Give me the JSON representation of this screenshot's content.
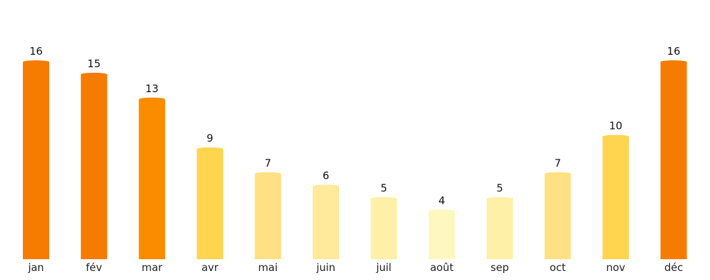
{
  "chart_data": {
    "type": "bar",
    "title": "",
    "xlabel": "",
    "ylabel": "",
    "categories": [
      "jan",
      "fév",
      "mar",
      "avr",
      "mai",
      "juin",
      "juil",
      "août",
      "sep",
      "oct",
      "nov",
      "déc"
    ],
    "values": [
      16,
      15,
      13,
      9,
      7,
      6,
      5,
      4,
      5,
      7,
      10,
      16
    ],
    "value_labels": [
      "16",
      "15",
      "13",
      "9",
      "7",
      "6",
      "5",
      "4",
      "5",
      "7",
      "10",
      "16"
    ],
    "bar_colors": [
      "#f57c00",
      "#f57c00",
      "#fb8c00",
      "#ffd54f",
      "#ffe082",
      "#ffe99a",
      "#fff0a8",
      "#fff7c0",
      "#fff0a8",
      "#ffe082",
      "#ffd54f",
      "#f57c00"
    ],
    "ylim": [
      0,
      16
    ],
    "grid": false,
    "legend": "none"
  }
}
